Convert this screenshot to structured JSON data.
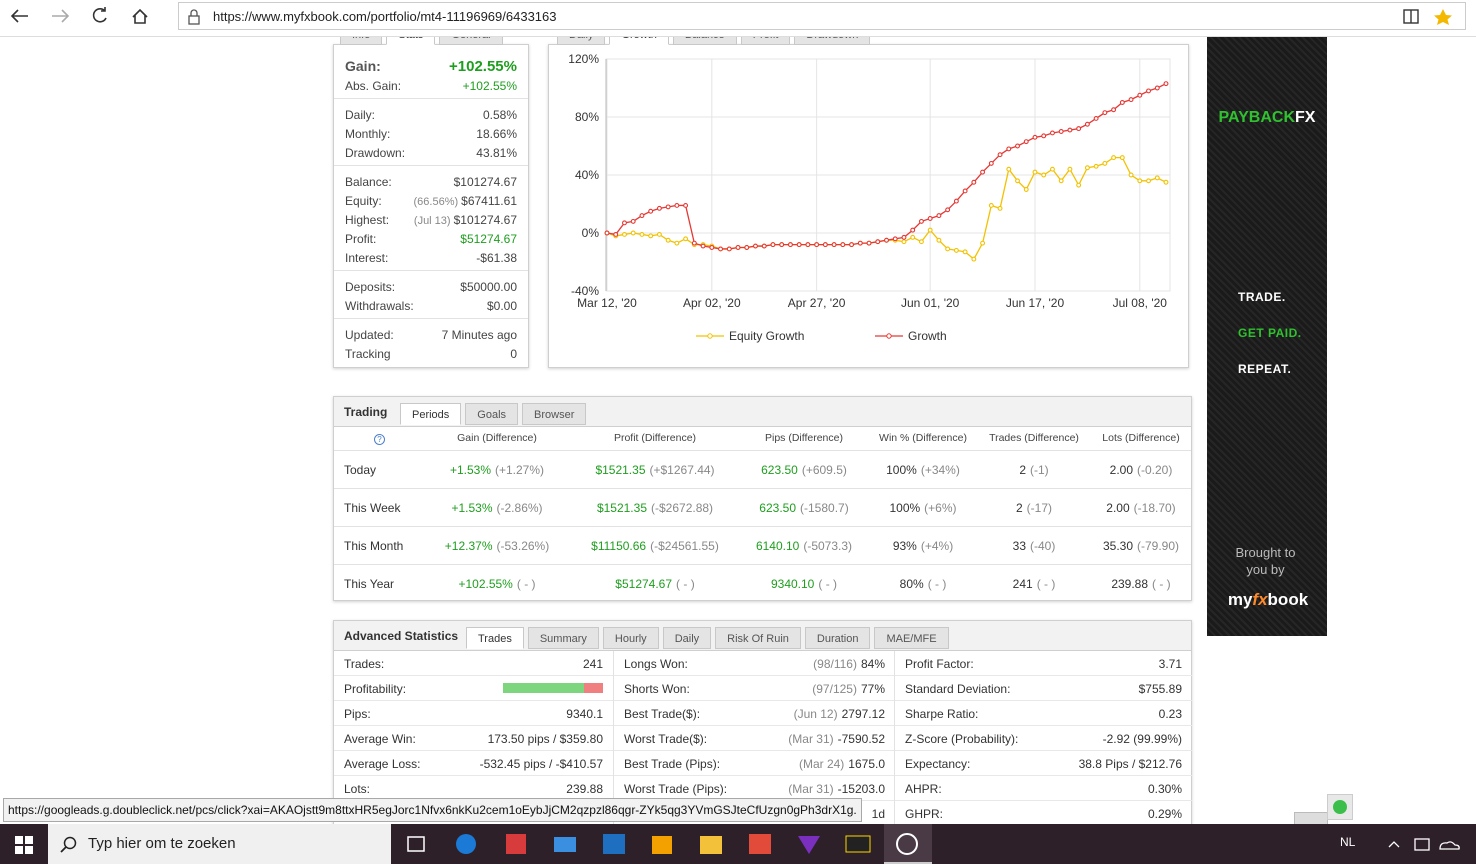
{
  "browser": {
    "url": "https://www.myfxbook.com/portfolio/mt4-11196969/6433163"
  },
  "stats": {
    "tabs": [
      "Info",
      "Stats",
      "General"
    ],
    "active_tab": 1,
    "groups": [
      [
        {
          "label": "Gain:",
          "value": "+102.55%",
          "color": "#1e9e1e"
        },
        {
          "label": "Abs. Gain:",
          "value": "+102.55%",
          "color": "#1e9e1e"
        }
      ],
      [
        {
          "label": "Daily:",
          "value": "0.58%"
        },
        {
          "label": "Monthly:",
          "value": "18.66%"
        },
        {
          "label": "Drawdown:",
          "value": "43.81%"
        }
      ],
      [
        {
          "label": "Balance:",
          "value": "$101274.67"
        },
        {
          "label": "Equity:",
          "note": "(66.56%)",
          "value": "$67411.61"
        },
        {
          "label": "Highest:",
          "note": "(Jul 13)",
          "value": "$101274.67"
        },
        {
          "label": "Profit:",
          "value": "$51274.67",
          "color": "#1e9e1e"
        },
        {
          "label": "Interest:",
          "value": "-$61.38"
        }
      ],
      [
        {
          "label": "Deposits:",
          "value": "$50000.00"
        },
        {
          "label": "Withdrawals:",
          "value": "$0.00"
        }
      ],
      [
        {
          "label": "Updated:",
          "value": "7 Minutes ago"
        },
        {
          "label": "Tracking",
          "value": "0"
        }
      ]
    ]
  },
  "chart_data": {
    "type": "line",
    "tabs": [
      "Daily",
      "Growth",
      "Balance",
      "Profit",
      "Drawdown"
    ],
    "active_tab": 1,
    "categories": [
      "Mar 12, '20",
      null,
      null,
      null,
      null,
      null,
      null,
      null,
      null,
      null,
      null,
      null,
      "Apr 02, '20",
      null,
      null,
      null,
      null,
      null,
      null,
      null,
      null,
      null,
      null,
      null,
      "Apr 27, '20",
      null,
      null,
      null,
      null,
      null,
      null,
      null,
      null,
      null,
      null,
      null,
      null,
      "Jun 01, '20",
      null,
      null,
      null,
      null,
      null,
      null,
      null,
      null,
      null,
      null,
      null,
      "Jun 17, '20",
      null,
      null,
      null,
      null,
      null,
      null,
      null,
      null,
      null,
      null,
      null,
      "Jul 08, '20",
      null,
      null,
      null
    ],
    "ylim": [
      -40,
      120
    ],
    "yticks": [
      {
        "value": -40,
        "label": "-40%"
      },
      {
        "value": 0,
        "label": "0%"
      },
      {
        "value": 40,
        "label": "40%"
      },
      {
        "value": 80,
        "label": "80%"
      },
      {
        "value": 120,
        "label": "120%"
      }
    ],
    "grid": true,
    "series": [
      {
        "name": "Equity Growth",
        "color": "#f2c200",
        "values": [
          0,
          -2,
          -1,
          0,
          -1,
          -2,
          -1,
          -5,
          -7,
          -4,
          -8,
          -8,
          -9,
          -11,
          -11,
          -10,
          -10,
          -9,
          -9,
          -8,
          -8,
          -8,
          -8,
          -8,
          -8,
          -8,
          -8,
          -8,
          -8,
          -7,
          -7,
          -6,
          -5,
          -5,
          -6,
          -3,
          -6,
          2,
          -5,
          -11,
          -12,
          -13,
          -18,
          -7,
          19,
          17,
          44,
          36,
          30,
          42,
          40,
          44,
          36,
          44,
          33,
          45,
          46,
          48,
          52,
          52,
          40,
          36,
          36,
          38,
          35
        ]
      },
      {
        "name": "Growth",
        "color": "#e53935",
        "values": [
          0,
          -1,
          7,
          8,
          12,
          15,
          17,
          18,
          19,
          19,
          -7,
          -9,
          -10,
          -11,
          -11,
          -10,
          -10,
          -9,
          -9,
          -8,
          -8,
          -8,
          -8,
          -8,
          -8,
          -8,
          -8,
          -8,
          -8,
          -7,
          -7,
          -6,
          -5,
          -4,
          -3,
          2,
          8,
          10,
          12,
          16,
          22,
          29,
          35,
          42,
          48,
          54,
          58,
          60,
          63,
          66,
          67,
          69,
          70,
          71,
          72,
          75,
          79,
          83,
          85,
          90,
          92,
          95,
          98,
          100,
          103
        ]
      }
    ]
  },
  "trading": {
    "title": "Trading",
    "tabs": [
      "Periods",
      "Goals",
      "Browser"
    ],
    "active_tab": 0,
    "help_icon": "?",
    "columns": [
      "Gain (Difference)",
      "Profit (Difference)",
      "Pips (Difference)",
      "Win % (Difference)",
      "Trades (Difference)",
      "Lots (Difference)"
    ],
    "rows": [
      {
        "period": "Today",
        "cells": [
          [
            "+1.53%",
            "(+1.27%)"
          ],
          [
            "$1521.35",
            "(+$1267.44)"
          ],
          [
            "623.50",
            "(+609.5)"
          ],
          [
            "100%",
            "(+34%)"
          ],
          [
            "2",
            "(-1)"
          ],
          [
            "2.00",
            "(-0.20)"
          ]
        ]
      },
      {
        "period": "This Week",
        "cells": [
          [
            "+1.53%",
            "(-2.86%)"
          ],
          [
            "$1521.35",
            "(-$2672.88)"
          ],
          [
            "623.50",
            "(-1580.7)"
          ],
          [
            "100%",
            "(+6%)"
          ],
          [
            "2",
            "(-17)"
          ],
          [
            "2.00",
            "(-18.70)"
          ]
        ]
      },
      {
        "period": "This Month",
        "cells": [
          [
            "+12.37%",
            "(-53.26%)"
          ],
          [
            "$11150.66",
            "(-$24561.55)"
          ],
          [
            "6140.10",
            "(-5073.3)"
          ],
          [
            "93%",
            "(+4%)"
          ],
          [
            "33",
            "(-40)"
          ],
          [
            "35.30",
            "(-79.90)"
          ]
        ]
      },
      {
        "period": "This Year",
        "cells": [
          [
            "+102.55%",
            "( - )"
          ],
          [
            "$51274.67",
            "( - )"
          ],
          [
            "9340.10",
            "( - )"
          ],
          [
            "80%",
            "( - )"
          ],
          [
            "241",
            "( - )"
          ],
          [
            "239.88",
            "( - )"
          ]
        ]
      }
    ]
  },
  "advanced_statistics": {
    "title": "Advanced Statistics",
    "tabs": [
      "Trades",
      "Summary",
      "Hourly",
      "Daily",
      "Risk Of Ruin",
      "Duration",
      "MAE/MFE"
    ],
    "active_tab": 0,
    "columns": [
      [
        {
          "label": "Trades:",
          "value": "241"
        },
        {
          "label": "Profitability:",
          "bar": [
            81,
            19
          ]
        },
        {
          "label": "Pips:",
          "value": "9340.1"
        },
        {
          "label": "Average Win:",
          "value": "173.50 pips / $359.80"
        },
        {
          "label": "Average Loss:",
          "value": "-532.45 pips / -$410.57"
        },
        {
          "label": "Lots:",
          "value": "239.88"
        }
      ],
      [
        {
          "label": "Longs Won:",
          "note": "(98/116)",
          "value": "84%"
        },
        {
          "label": "Shorts Won:",
          "note": "(97/125)",
          "value": "77%"
        },
        {
          "label": "Best Trade($):",
          "note": "(Jun 12)",
          "value": "2797.12"
        },
        {
          "label": "Worst Trade($):",
          "note": "(Mar 31)",
          "value": "-7590.52"
        },
        {
          "label": "Best Trade (Pips):",
          "note": "(Mar 24)",
          "value": "1675.0"
        },
        {
          "label": "Worst Trade (Pips):",
          "note": "(Mar 31)",
          "value": "-15203.0"
        },
        {
          "value": "1d"
        }
      ],
      [
        {
          "label": "Profit Factor:",
          "value": "3.71"
        },
        {
          "label": "Standard Deviation:",
          "value": "$755.89"
        },
        {
          "label": "Sharpe Ratio:",
          "value": "0.23"
        },
        {
          "label": "Z-Score (Probability):",
          "value": "-2.92 (99.99%)"
        },
        {
          "label": "Expectancy:",
          "value": "38.8 Pips / $212.76"
        },
        {
          "label": "AHPR:",
          "value": "0.30%"
        },
        {
          "label": "GHPR:",
          "value": "0.29%"
        }
      ]
    ]
  },
  "ad": {
    "brand": [
      "PAYBACK",
      "FX"
    ],
    "lines": [
      "TRADE.",
      "GET PAID.",
      "REPEAT."
    ],
    "byline": [
      "Brought to",
      "you by"
    ],
    "logo": [
      "my",
      "fx",
      "book"
    ]
  },
  "status_bar": {
    "url": "https://googleads.g.doubleclick.net/pcs/click?xai=AKAOjstt9m8ttxHR5egJorc1Nfvx6nkKu2cem1oEybJjCM2qzpzl86qgr-ZYk5qg3YVmGSJteCfUzgn0gPh3drX1g."
  },
  "taskbar": {
    "search": "Typ hier om te zoeken",
    "language": "NL"
  }
}
